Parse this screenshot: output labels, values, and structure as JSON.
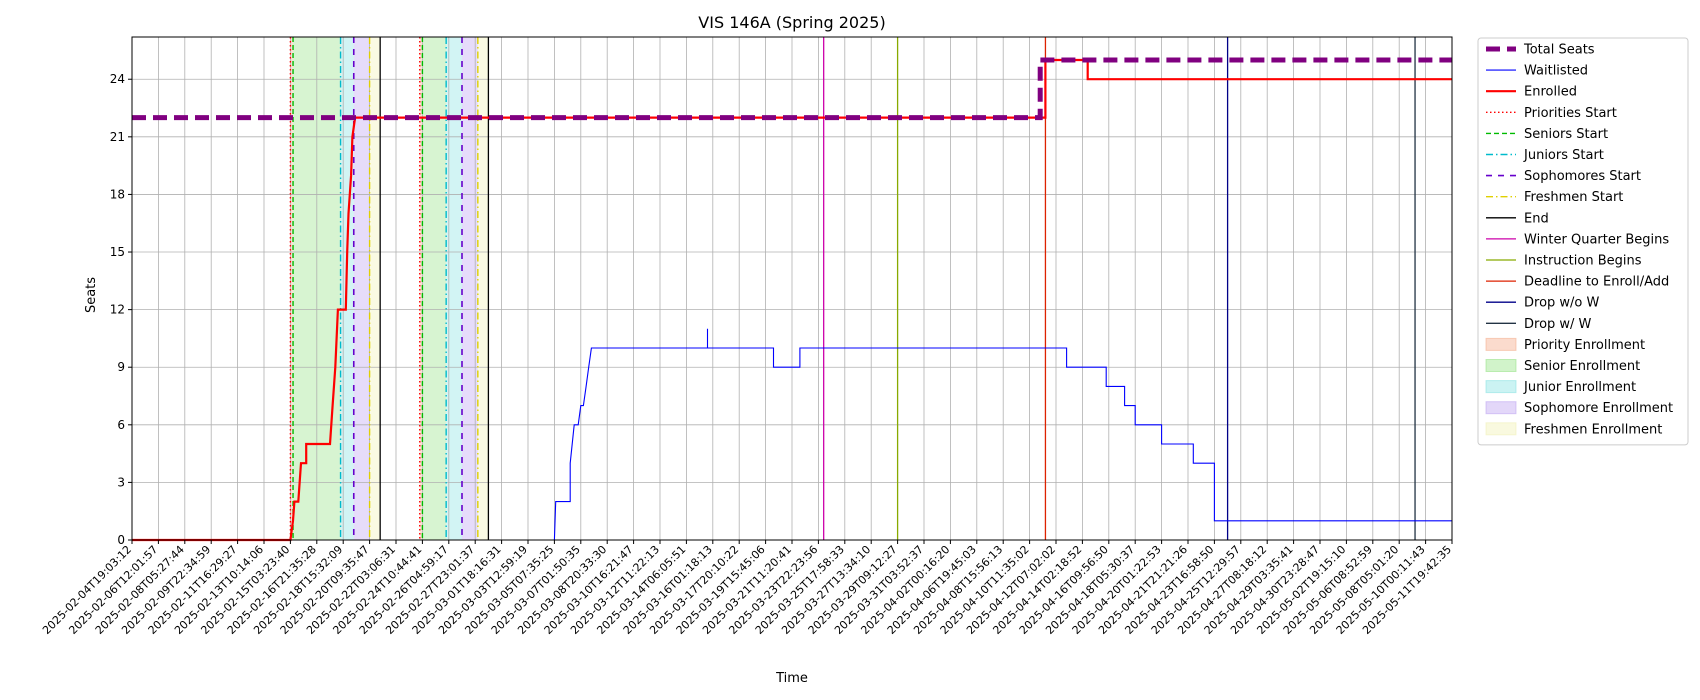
{
  "chart_data": {
    "type": "line",
    "title": "VIS 146A (Spring 2025)",
    "xlabel": "Time",
    "ylabel": "Seats",
    "ylim": [
      0,
      26.2
    ],
    "yticks": [
      0,
      3,
      6,
      9,
      12,
      15,
      18,
      21,
      24
    ],
    "grid": true,
    "legend_placement": "outside-right",
    "x_tick_labels": [
      "2025-02-04T19:03:12",
      "2025-02-06T12:01:57",
      "2025-02-08T05:27:44",
      "2025-02-09T22:34:59",
      "2025-02-11T16:29:27",
      "2025-02-13T10:14:06",
      "2025-02-15T03:23:40",
      "2025-02-16T21:35:28",
      "2025-02-18T15:32:09",
      "2025-02-20T09:35:47",
      "2025-02-22T03:06:31",
      "2025-02-24T10:44:41",
      "2025-02-26T04:59:17",
      "2025-02-27T23:01:37",
      "2025-03-01T18:16:31",
      "2025-03-03T12:59:19",
      "2025-03-05T07:35:25",
      "2025-03-07T01:50:35",
      "2025-03-08T20:33:30",
      "2025-03-10T16:21:47",
      "2025-03-12T11:22:13",
      "2025-03-14T06:05:51",
      "2025-03-16T01:18:13",
      "2025-03-17T20:10:22",
      "2025-03-19T15:45:06",
      "2025-03-21T11:20:41",
      "2025-03-23T22:23:56",
      "2025-03-25T17:58:33",
      "2025-03-27T13:34:10",
      "2025-03-29T09:12:27",
      "2025-03-31T03:52:37",
      "2025-04-02T00:16:20",
      "2025-04-06T19:45:03",
      "2025-04-08T15:56:13",
      "2025-04-10T11:35:02",
      "2025-04-12T07:02:02",
      "2025-04-14T02:18:52",
      "2025-04-16T09:56:50",
      "2025-04-18T05:30:37",
      "2025-04-20T01:22:53",
      "2025-04-21T21:21:26",
      "2025-04-23T16:58:50",
      "2025-04-25T12:29:57",
      "2025-04-27T08:18:12",
      "2025-04-29T03:35:41",
      "2025-04-30T23:28:47",
      "2025-05-02T19:15:10",
      "2025-05-06T08:52:59",
      "2025-05-08T05:01:20",
      "2025-05-10T00:11:43",
      "2025-05-11T19:42:35"
    ],
    "x_index_range": [
      0,
      50
    ],
    "series": [
      {
        "name": "Total Seats",
        "color": "#800080",
        "style": "dashed-thick",
        "points": [
          [
            0,
            22
          ],
          [
            34.4,
            22
          ],
          [
            34.4,
            25
          ],
          [
            50,
            25
          ]
        ]
      },
      {
        "name": "Waitlisted",
        "color": "#0000ff",
        "style": "solid-thin",
        "points": [
          [
            0,
            0
          ],
          [
            10.8,
            0
          ],
          [
            11.0,
            0
          ],
          [
            14.5,
            0
          ],
          [
            15.4,
            0
          ],
          [
            16.0,
            0
          ],
          [
            16.05,
            2
          ],
          [
            16.6,
            2
          ],
          [
            16.6,
            4
          ],
          [
            16.75,
            6
          ],
          [
            16.9,
            6
          ],
          [
            17.0,
            7
          ],
          [
            17.1,
            7
          ],
          [
            17.2,
            8
          ],
          [
            17.3,
            9
          ],
          [
            17.4,
            10
          ],
          [
            21.8,
            10
          ],
          [
            21.8,
            11
          ],
          [
            21.8,
            10
          ],
          [
            24.3,
            10
          ],
          [
            24.3,
            9
          ],
          [
            25.3,
            9
          ],
          [
            25.3,
            10
          ],
          [
            35.4,
            10
          ],
          [
            35.4,
            9
          ],
          [
            36.9,
            9
          ],
          [
            36.9,
            8
          ],
          [
            37.6,
            8
          ],
          [
            37.6,
            7
          ],
          [
            38.0,
            7
          ],
          [
            38.0,
            6
          ],
          [
            39.0,
            6
          ],
          [
            39.0,
            5
          ],
          [
            40.2,
            5
          ],
          [
            40.2,
            4
          ],
          [
            41.0,
            4
          ],
          [
            41.0,
            1
          ],
          [
            50,
            1
          ]
        ]
      },
      {
        "name": "Enrolled",
        "color": "#ff0000",
        "style": "solid-thick",
        "points": [
          [
            0,
            0
          ],
          [
            6.0,
            0
          ],
          [
            6.1,
            1
          ],
          [
            6.15,
            2
          ],
          [
            6.3,
            2
          ],
          [
            6.4,
            4
          ],
          [
            6.6,
            4
          ],
          [
            6.6,
            5
          ],
          [
            7.5,
            5
          ],
          [
            7.6,
            7
          ],
          [
            7.7,
            9
          ],
          [
            7.8,
            12
          ],
          [
            8.1,
            12
          ],
          [
            8.15,
            15
          ],
          [
            8.2,
            17
          ],
          [
            8.3,
            19
          ],
          [
            8.35,
            21
          ],
          [
            8.45,
            22
          ],
          [
            34.6,
            22
          ],
          [
            34.6,
            25
          ],
          [
            36.2,
            25
          ],
          [
            36.2,
            24
          ],
          [
            50,
            24
          ]
        ]
      }
    ],
    "markers": [
      {
        "name": "Priorities Start",
        "color": "#ff0000",
        "style": "dotted",
        "x": [
          6.0,
          10.9
        ]
      },
      {
        "name": "Seniors Start",
        "color": "#00bb00",
        "style": "dashed",
        "x": [
          6.1,
          11.0
        ]
      },
      {
        "name": "Juniors Start",
        "color": "#00bbcc",
        "style": "dashdot",
        "x": [
          7.9,
          11.9
        ]
      },
      {
        "name": "Sophomores Start",
        "color": "#6600cc",
        "style": "loosedash",
        "x": [
          8.4,
          12.5
        ]
      },
      {
        "name": "Freshmen Start",
        "color": "#e0d000",
        "style": "dashdot",
        "x": [
          9.0,
          13.1
        ]
      },
      {
        "name": "End",
        "color": "#000000",
        "style": "solid",
        "x": [
          9.4,
          13.5
        ]
      },
      {
        "name": "Winter Quarter Begins",
        "color": "#cc00aa",
        "style": "solid",
        "x": [
          26.2
        ]
      },
      {
        "name": "Instruction Begins",
        "color": "#88aa00",
        "style": "solid",
        "x": [
          29.0
        ]
      },
      {
        "name": "Deadline to Enroll/Add",
        "color": "#dd2200",
        "style": "solid",
        "x": [
          34.6
        ]
      },
      {
        "name": "Drop w/o W",
        "color": "#000088",
        "style": "solid",
        "x": [
          41.5
        ]
      },
      {
        "name": "Drop w/ W",
        "color": "#223344",
        "style": "solid",
        "x": [
          48.6
        ]
      }
    ],
    "spans": [
      {
        "name": "Priority Enrollment",
        "color": "#f4a582",
        "ranges": [
          [
            6.0,
            6.1
          ],
          [
            10.9,
            11.0
          ]
        ]
      },
      {
        "name": "Senior Enrollment",
        "color": "#8de07a",
        "ranges": [
          [
            6.1,
            7.9
          ],
          [
            11.0,
            11.9
          ]
        ]
      },
      {
        "name": "Junior Enrollment",
        "color": "#7ee0e0",
        "ranges": [
          [
            7.9,
            8.4
          ],
          [
            11.9,
            12.5
          ]
        ]
      },
      {
        "name": "Sophomore Enrollment",
        "color": "#b89cf0",
        "ranges": [
          [
            8.4,
            9.0
          ],
          [
            12.5,
            13.1
          ]
        ]
      },
      {
        "name": "Freshmen Enrollment",
        "color": "#f0f0b0",
        "ranges": [
          [
            9.0,
            9.4
          ],
          [
            13.1,
            13.5
          ]
        ]
      }
    ],
    "legend": [
      {
        "label": "Total Seats",
        "kind": "line",
        "color": "#800080",
        "style": "dashed-thick"
      },
      {
        "label": "Waitlisted",
        "kind": "line",
        "color": "#0000ff",
        "style": "solid-thin"
      },
      {
        "label": "Enrolled",
        "kind": "line",
        "color": "#ff0000",
        "style": "solid-thick"
      },
      {
        "label": "Priorities Start",
        "kind": "line",
        "color": "#ff0000",
        "style": "dotted"
      },
      {
        "label": "Seniors Start",
        "kind": "line",
        "color": "#00bb00",
        "style": "dashed"
      },
      {
        "label": "Juniors Start",
        "kind": "line",
        "color": "#00bbcc",
        "style": "dashdot"
      },
      {
        "label": "Sophomores Start",
        "kind": "line",
        "color": "#6600cc",
        "style": "loosedash"
      },
      {
        "label": "Freshmen Start",
        "kind": "line",
        "color": "#e0d000",
        "style": "dashdot"
      },
      {
        "label": "End",
        "kind": "line",
        "color": "#000000",
        "style": "solid"
      },
      {
        "label": "Winter Quarter Begins",
        "kind": "line",
        "color": "#cc00aa",
        "style": "solid"
      },
      {
        "label": "Instruction Begins",
        "kind": "line",
        "color": "#88aa00",
        "style": "solid"
      },
      {
        "label": "Deadline to Enroll/Add",
        "kind": "line",
        "color": "#dd2200",
        "style": "solid"
      },
      {
        "label": "Drop w/o W",
        "kind": "line",
        "color": "#000088",
        "style": "solid"
      },
      {
        "label": "Drop w/ W",
        "kind": "line",
        "color": "#223344",
        "style": "solid"
      },
      {
        "label": "Priority Enrollment",
        "kind": "patch",
        "color": "#f4a582"
      },
      {
        "label": "Senior Enrollment",
        "kind": "patch",
        "color": "#8de07a"
      },
      {
        "label": "Junior Enrollment",
        "kind": "patch",
        "color": "#7ee0e0"
      },
      {
        "label": "Sophomore Enrollment",
        "kind": "patch",
        "color": "#b89cf0"
      },
      {
        "label": "Freshmen Enrollment",
        "kind": "patch",
        "color": "#f0f0b0"
      }
    ]
  }
}
